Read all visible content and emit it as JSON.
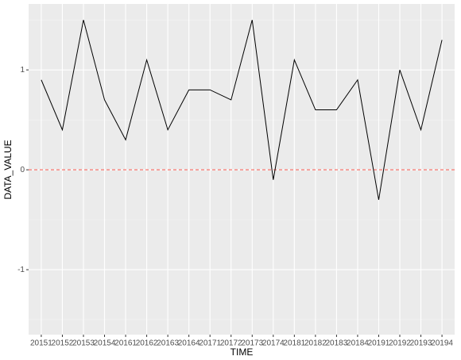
{
  "chart_data": {
    "type": "line",
    "x_label": "TIME",
    "y_label": "DATA_VALUE",
    "categories": [
      "20151",
      "20152",
      "20153",
      "20154",
      "20161",
      "20162",
      "20163",
      "20164",
      "20171",
      "20172",
      "20173",
      "20174",
      "20181",
      "20182",
      "20183",
      "20184",
      "20191",
      "20192",
      "20193",
      "20194"
    ],
    "series": [
      {
        "name": "DATA_VALUE",
        "color": "#000000",
        "values": [
          0.9,
          0.4,
          1.5,
          0.7,
          0.3,
          1.1,
          0.4,
          0.8,
          0.8,
          0.7,
          1.5,
          -0.1,
          1.1,
          0.6,
          0.6,
          0.9,
          -0.3,
          1.0,
          0.4,
          1.3
        ]
      }
    ],
    "ylim": [
      -1.65,
      1.66
    ],
    "yticks": [
      -1,
      0,
      1
    ],
    "grid": true,
    "reference_line": {
      "value": 0,
      "color": "#f8766d",
      "dashed": true
    }
  }
}
